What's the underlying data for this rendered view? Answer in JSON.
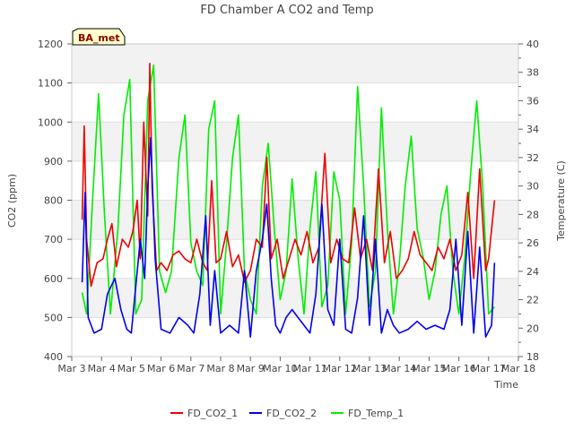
{
  "chart_data": {
    "type": "line",
    "title": "FD Chamber A CO2 and Temp",
    "badge": "BA_met",
    "xlabel": "Time",
    "ylabel": "CO2 (ppm)",
    "y2label": "Temperature (C)",
    "x_ticks": [
      "Mar 3",
      "Mar 4",
      "Mar 5",
      "Mar 6",
      "Mar 7",
      "Mar 8",
      "Mar 9",
      "Mar 10",
      "Mar 11",
      "Mar 12",
      "Mar 13",
      "Mar 14",
      "Mar 15",
      "Mar 16",
      "Mar 17",
      "Mar 18"
    ],
    "xlim": [
      3,
      18
    ],
    "ylim": [
      400,
      1200
    ],
    "y_ticks": [
      400,
      500,
      600,
      700,
      800,
      900,
      1000,
      1100,
      1200
    ],
    "y2lim": [
      18,
      40
    ],
    "y2_ticks": [
      18,
      20,
      22,
      24,
      26,
      28,
      30,
      32,
      34,
      36,
      38,
      40
    ],
    "grid": true,
    "legend_position": "bottom",
    "series": [
      {
        "name": "FD_CO2_1",
        "axis": "left",
        "color": "#ee0000",
        "x": [
          3.35,
          3.42,
          3.5,
          3.65,
          3.85,
          4.05,
          4.2,
          4.35,
          4.5,
          4.7,
          4.9,
          5.05,
          5.2,
          5.3,
          5.42,
          5.55,
          5.62,
          5.7,
          5.85,
          6.0,
          6.2,
          6.4,
          6.6,
          6.8,
          7.0,
          7.2,
          7.4,
          7.55,
          7.7,
          7.85,
          8.0,
          8.2,
          8.4,
          8.6,
          8.8,
          9.0,
          9.2,
          9.4,
          9.55,
          9.7,
          9.9,
          10.1,
          10.3,
          10.5,
          10.7,
          10.9,
          11.1,
          11.3,
          11.5,
          11.7,
          11.9,
          12.1,
          12.3,
          12.5,
          12.7,
          12.9,
          13.1,
          13.3,
          13.5,
          13.7,
          13.9,
          14.1,
          14.3,
          14.5,
          14.7,
          14.9,
          15.1,
          15.3,
          15.5,
          15.7,
          15.9,
          16.1,
          16.3,
          16.5,
          16.7,
          16.9,
          17.0,
          17.2
        ],
        "values": [
          750,
          990,
          700,
          580,
          640,
          650,
          700,
          740,
          630,
          700,
          680,
          720,
          800,
          650,
          1000,
          760,
          1150,
          830,
          620,
          640,
          620,
          660,
          670,
          650,
          640,
          700,
          640,
          620,
          850,
          640,
          650,
          720,
          630,
          660,
          590,
          620,
          700,
          680,
          910,
          650,
          700,
          600,
          650,
          700,
          660,
          720,
          640,
          680,
          920,
          640,
          700,
          650,
          640,
          780,
          650,
          700,
          620,
          880,
          640,
          720,
          600,
          620,
          650,
          720,
          660,
          640,
          620,
          680,
          650,
          700,
          620,
          660,
          820,
          600,
          880,
          620,
          650,
          800
        ]
      },
      {
        "name": "FD_CO2_2",
        "axis": "left",
        "color": "#0000ee",
        "x": [
          3.35,
          3.45,
          3.55,
          3.75,
          4.0,
          4.2,
          4.45,
          4.65,
          4.85,
          5.0,
          5.15,
          5.3,
          5.45,
          5.55,
          5.65,
          5.8,
          6.0,
          6.3,
          6.6,
          6.9,
          7.1,
          7.3,
          7.5,
          7.65,
          7.8,
          8.0,
          8.3,
          8.6,
          8.8,
          9.0,
          9.2,
          9.4,
          9.55,
          9.7,
          9.85,
          10.0,
          10.2,
          10.4,
          10.6,
          10.8,
          11.0,
          11.2,
          11.4,
          11.6,
          11.8,
          12.0,
          12.2,
          12.4,
          12.6,
          12.8,
          13.0,
          13.2,
          13.4,
          13.6,
          13.8,
          14.0,
          14.3,
          14.6,
          14.9,
          15.2,
          15.5,
          15.7,
          15.9,
          16.1,
          16.3,
          16.5,
          16.7,
          16.9,
          17.1,
          17.2
        ],
        "values": [
          590,
          820,
          500,
          460,
          470,
          560,
          600,
          520,
          470,
          460,
          580,
          700,
          600,
          830,
          960,
          650,
          470,
          460,
          500,
          480,
          460,
          560,
          760,
          480,
          620,
          460,
          480,
          460,
          620,
          450,
          620,
          700,
          790,
          600,
          480,
          460,
          500,
          520,
          500,
          480,
          460,
          560,
          790,
          520,
          480,
          700,
          470,
          460,
          550,
          760,
          480,
          700,
          460,
          520,
          480,
          460,
          470,
          490,
          470,
          480,
          470,
          520,
          700,
          480,
          720,
          460,
          680,
          450,
          480,
          640
        ]
      },
      {
        "name": "FD_Temp_1",
        "axis": "right",
        "color": "#00ee00",
        "x": [
          3.35,
          3.5,
          3.7,
          3.9,
          4.1,
          4.3,
          4.55,
          4.75,
          4.95,
          5.15,
          5.35,
          5.55,
          5.75,
          5.95,
          6.15,
          6.35,
          6.6,
          6.8,
          7.0,
          7.2,
          7.4,
          7.6,
          7.8,
          8.0,
          8.2,
          8.4,
          8.6,
          8.8,
          9.0,
          9.2,
          9.4,
          9.6,
          9.8,
          10.0,
          10.2,
          10.4,
          10.6,
          10.8,
          11.0,
          11.2,
          11.4,
          11.6,
          11.8,
          12.0,
          12.2,
          12.4,
          12.6,
          12.8,
          13.0,
          13.2,
          13.4,
          13.6,
          13.8,
          14.0,
          14.2,
          14.4,
          14.6,
          14.8,
          15.0,
          15.2,
          15.4,
          15.6,
          15.8,
          16.0,
          16.2,
          16.4,
          16.6,
          16.8,
          17.0,
          17.2
        ],
        "values": [
          22.5,
          21.0,
          29.0,
          36.5,
          28.0,
          21.0,
          27.0,
          35.0,
          37.5,
          21.0,
          22.0,
          36.0,
          38.5,
          24.0,
          22.5,
          24.0,
          32.0,
          35.0,
          26.0,
          24.0,
          23.0,
          34.0,
          36.0,
          21.0,
          26.0,
          32.0,
          35.0,
          24.0,
          22.0,
          21.0,
          30.0,
          33.0,
          27.0,
          22.0,
          24.0,
          30.5,
          25.0,
          21.0,
          27.0,
          31.0,
          21.5,
          23.0,
          31.0,
          29.0,
          21.0,
          26.0,
          37.0,
          30.0,
          21.5,
          24.0,
          35.5,
          27.0,
          21.0,
          24.5,
          30.0,
          33.5,
          27.0,
          25.0,
          22.0,
          24.0,
          28.0,
          30.0,
          24.0,
          21.0,
          25.0,
          31.0,
          36.0,
          30.0,
          21.0,
          21.5
        ]
      }
    ]
  }
}
